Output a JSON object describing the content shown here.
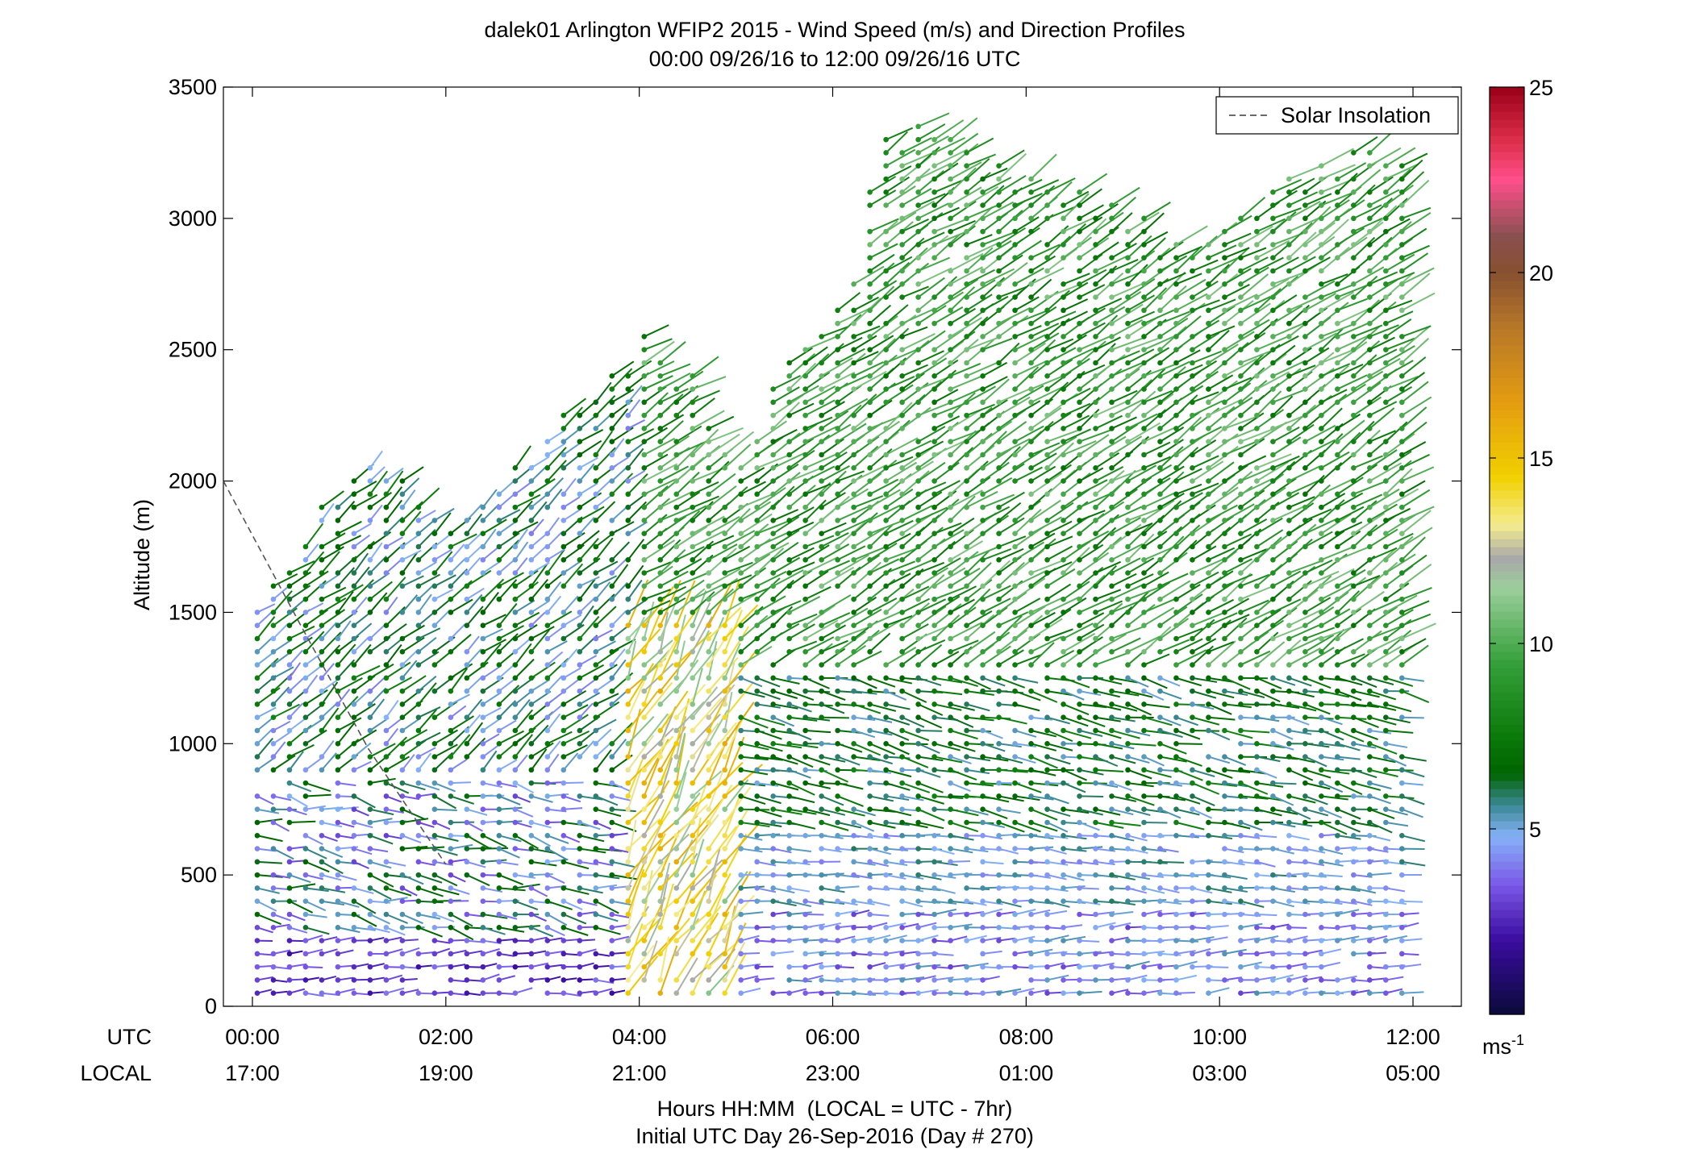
{
  "chart_data": {
    "type": "scatter",
    "title": "dalek01 Arlington WFIP2 2015 - Wind Speed (m/s) and Direction Profiles",
    "subtitle": "00:00 09/26/16 to 12:00 09/26/16  UTC",
    "ylabel": "Altitude (m)",
    "ylim": [
      0,
      3500
    ],
    "yticks": [
      "0",
      "500",
      "1000",
      "1500",
      "2000",
      "2500",
      "3000",
      "3500"
    ],
    "xlim": [
      -0.3,
      12.5
    ],
    "xrow_labels": [
      "UTC",
      "LOCAL"
    ],
    "xticks_utc": [
      "00:00",
      "02:00",
      "04:00",
      "06:00",
      "08:00",
      "10:00",
      "12:00"
    ],
    "xticks_local": [
      "17:00",
      "19:00",
      "21:00",
      "23:00",
      "01:00",
      "03:00",
      "05:00"
    ],
    "xlabel": "Hours HH:MM  (LOCAL = UTC - 7hr)",
    "xlabel2": "Initial UTC Day 26-Sep-2016 (Day # 270)",
    "legend": {
      "label": "Solar Insolation",
      "placement": "top-right"
    },
    "solar_insolation": {
      "x_hours": [
        -0.3,
        0.5,
        1.2,
        2.0
      ],
      "altitude_m": [
        2000,
        1450,
        980,
        540
      ]
    },
    "colorbar": {
      "ticks": [
        "5",
        "10",
        "15",
        "20",
        "25"
      ],
      "range": [
        0,
        25
      ],
      "unit": "ms",
      "unit_sup": "-1",
      "stops": [
        [
          0,
          "#0a0a3a"
        ],
        [
          2,
          "#3a0ca0"
        ],
        [
          3.5,
          "#7a58e8"
        ],
        [
          4.8,
          "#86b2f8"
        ],
        [
          5.6,
          "#3e8a9c"
        ],
        [
          6.5,
          "#006400"
        ],
        [
          7.5,
          "#0a7a0a"
        ],
        [
          9.5,
          "#36a03a"
        ],
        [
          11.5,
          "#9ccf9c"
        ],
        [
          12.3,
          "#a8a8a8"
        ],
        [
          13.2,
          "#f4ec90"
        ],
        [
          14.5,
          "#f2d000"
        ],
        [
          16.5,
          "#e49c10"
        ],
        [
          18.5,
          "#b87828"
        ],
        [
          20,
          "#885030"
        ],
        [
          21,
          "#8a5050"
        ],
        [
          22.5,
          "#ff4f8b"
        ],
        [
          23.5,
          "#e0304e"
        ],
        [
          25,
          "#9a0018"
        ]
      ]
    },
    "profiles": {
      "time_step_hours": 0.1667,
      "altitude_bins_m": "approx. every 50 m from 50 m to the profile top",
      "regimes": [
        {
          "utc_hours": [
            0.0,
            4.0
          ],
          "altitude_m": [
            0,
            900
          ],
          "speed_ms": [
            2,
            7
          ],
          "direction": "light northerly to westerly flow, dark purple near surface"
        },
        {
          "utc_hours": [
            0.0,
            4.0
          ],
          "altitude_m": [
            900,
            2300
          ],
          "speed_ms": [
            4,
            8
          ],
          "direction": "southwesterly, blue to green"
        },
        {
          "utc_hours": [
            3.8,
            5.0
          ],
          "altitude_m": [
            0,
            1500
          ],
          "speed_ms": [
            10,
            16
          ],
          "direction": "strong southerly jet, yellow to orange"
        },
        {
          "utc_hours": [
            5.0,
            12.0
          ],
          "altitude_m": [
            0,
            700
          ],
          "speed_ms": [
            3,
            6
          ],
          "direction": "westerly, blue near surface"
        },
        {
          "utc_hours": [
            5.0,
            12.0
          ],
          "altitude_m": [
            700,
            1300
          ],
          "speed_ms": [
            5,
            8
          ],
          "direction": "westerly layer, dark green"
        },
        {
          "utc_hours": [
            5.0,
            12.0
          ],
          "altitude_m": [
            1300,
            3400
          ],
          "speed_ms": [
            7,
            11
          ],
          "direction": "southwesterly aloft, green"
        }
      ],
      "profile_top_m": [
        [
          0.0,
          1500
        ],
        [
          0.5,
          1800
        ],
        [
          1.0,
          2100
        ],
        [
          1.5,
          2050
        ],
        [
          2.0,
          1900
        ],
        [
          2.5,
          1950
        ],
        [
          3.0,
          2200
        ],
        [
          3.5,
          2400
        ],
        [
          4.0,
          2600
        ],
        [
          4.5,
          2500
        ],
        [
          5.0,
          2100
        ],
        [
          5.5,
          2500
        ],
        [
          6.0,
          2650
        ],
        [
          6.5,
          3300
        ],
        [
          7.0,
          3450
        ],
        [
          7.5,
          3250
        ],
        [
          8.0,
          3150
        ],
        [
          8.5,
          3200
        ],
        [
          9.0,
          3100
        ],
        [
          9.5,
          2950
        ],
        [
          10.0,
          3000
        ],
        [
          10.5,
          3150
        ],
        [
          11.0,
          3250
        ],
        [
          11.5,
          3350
        ],
        [
          12.0,
          3250
        ]
      ]
    }
  }
}
